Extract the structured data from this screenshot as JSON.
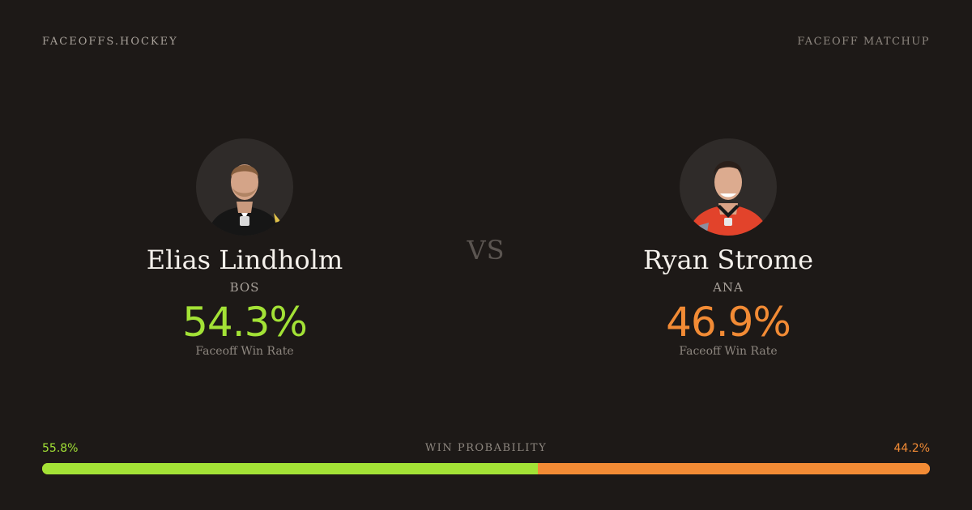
{
  "header": {
    "brand": "FACEOFFS.HOCKEY",
    "tag": "FACEOFF MATCHUP"
  },
  "players": [
    {
      "name": "Elias Lindholm",
      "team": "BOS",
      "win_rate": "54.3%",
      "win_rate_label": "Faceoff Win Rate",
      "color": "#a3e236",
      "jersey_color": "#1e1e1e"
    },
    {
      "name": "Ryan Strome",
      "team": "ANA",
      "win_rate": "46.9%",
      "win_rate_label": "Faceoff Win Rate",
      "color": "#f28b35",
      "jersey_color": "#e2432b"
    }
  ],
  "versus": "VS",
  "win_probability": {
    "title": "WIN PROBABILITY",
    "left_label": "55.8%",
    "right_label": "44.2%",
    "left_value": 55.8,
    "right_value": 44.2,
    "left_color": "#a3e236",
    "right_color": "#f28b35"
  },
  "icons": {
    "avatar_left": "player-headshot-icon",
    "avatar_right": "player-headshot-icon"
  }
}
